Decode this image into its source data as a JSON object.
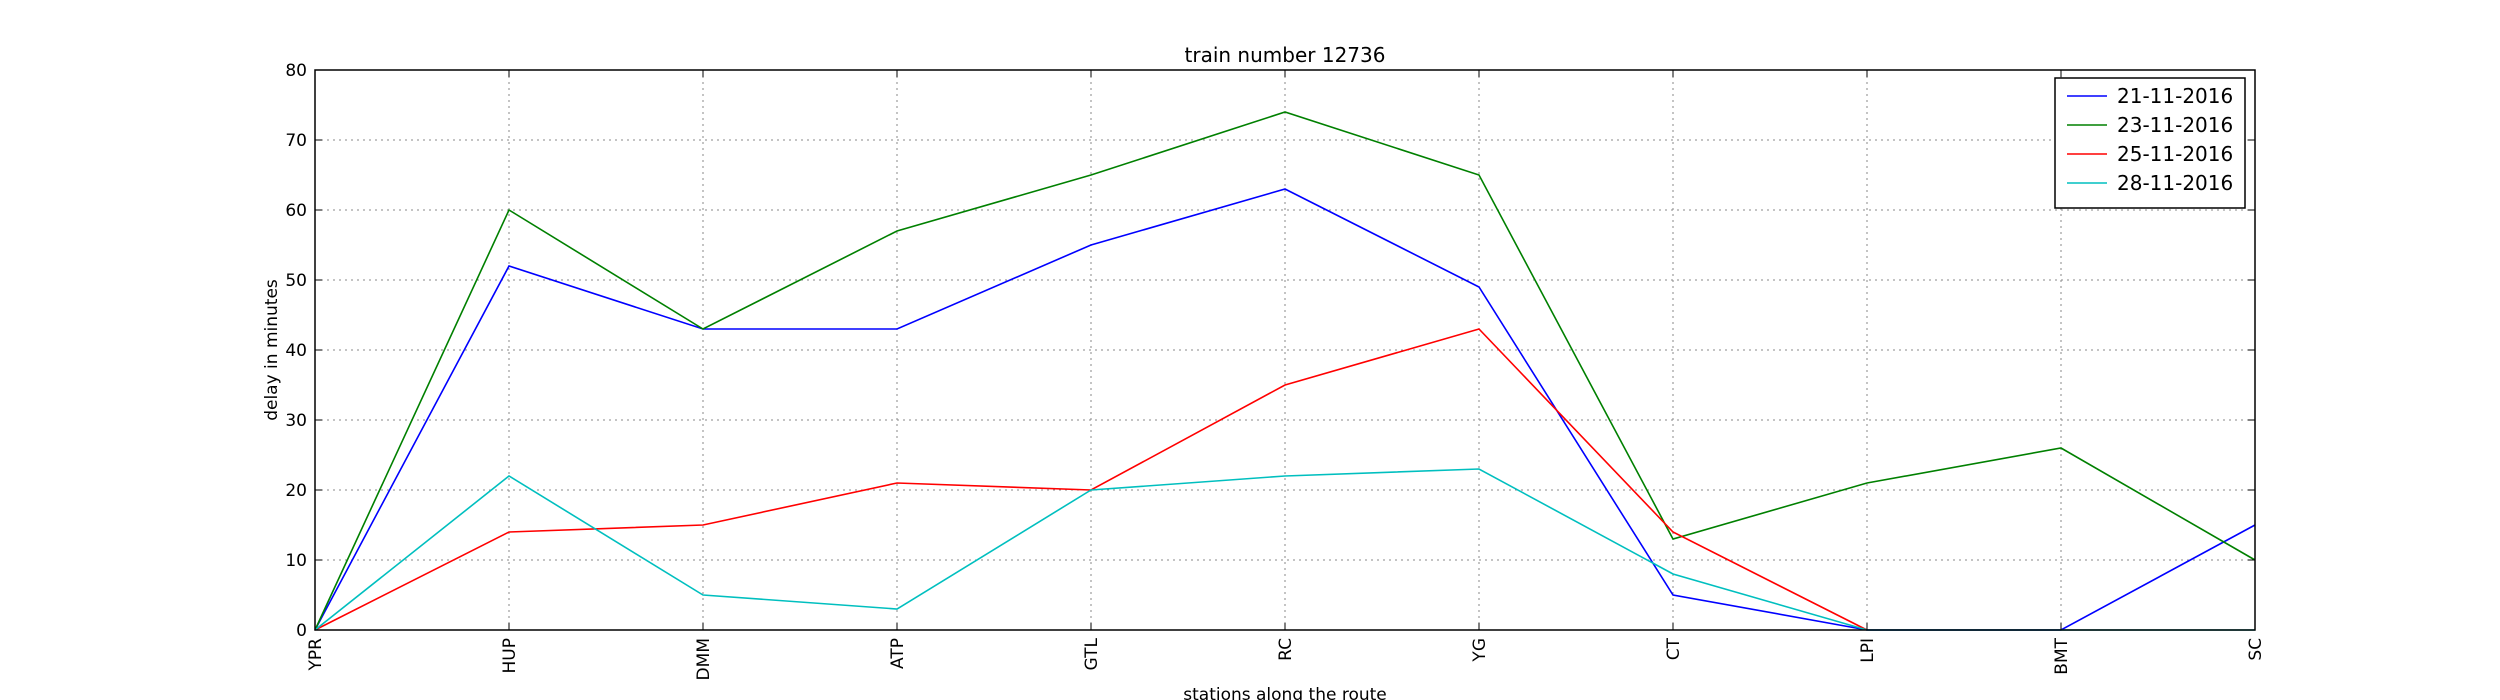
{
  "chart_data": {
    "type": "line",
    "title": "train number 12736",
    "xlabel": "stations along the route",
    "ylabel": "delay in minutes",
    "categories": [
      "YPR",
      "HUP",
      "DMM",
      "ATP",
      "GTL",
      "RC",
      "YG",
      "CT",
      "LPI",
      "BMT",
      "SC"
    ],
    "ylim": [
      0,
      80
    ],
    "yticks": [
      0,
      10,
      20,
      30,
      40,
      50,
      60,
      70,
      80
    ],
    "grid": true,
    "legend_position": "top-right",
    "series": [
      {
        "name": "21-11-2016",
        "color": "#0000ff",
        "values": [
          0,
          52,
          43,
          43,
          55,
          63,
          49,
          5,
          0,
          0,
          15
        ]
      },
      {
        "name": "23-11-2016",
        "color": "#008000",
        "values": [
          0,
          60,
          43,
          57,
          65,
          74,
          65,
          13,
          21,
          26,
          10
        ]
      },
      {
        "name": "25-11-2016",
        "color": "#ff0000",
        "values": [
          0,
          14,
          15,
          21,
          20,
          35,
          43,
          14,
          0,
          null,
          null
        ]
      },
      {
        "name": "28-11-2016",
        "color": "#00bfbf",
        "values": [
          0,
          22,
          5,
          3,
          20,
          22,
          23,
          8,
          0,
          0,
          0
        ]
      }
    ]
  }
}
